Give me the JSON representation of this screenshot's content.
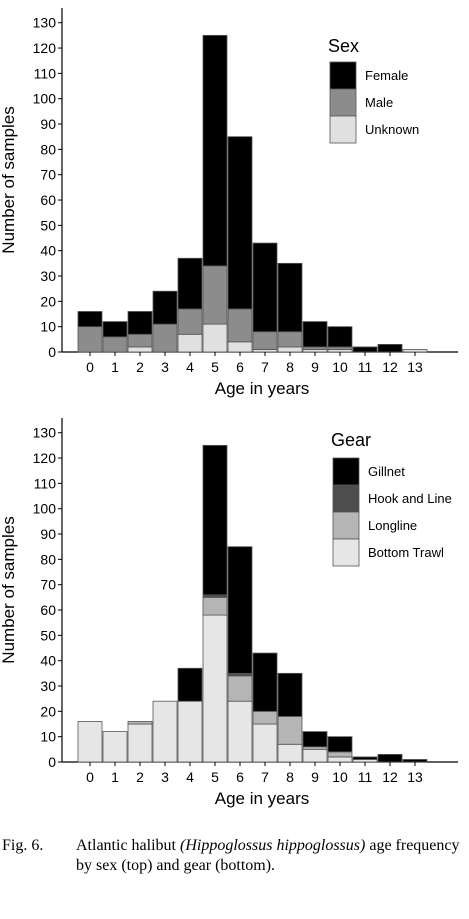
{
  "chart_data": [
    {
      "type": "bar",
      "stacked": true,
      "categories": [
        "0",
        "1",
        "2",
        "3",
        "4",
        "5",
        "6",
        "7",
        "8",
        "9",
        "10",
        "11",
        "12",
        "13"
      ],
      "series": [
        {
          "name": "Unknown",
          "color": "#e0e0e0",
          "values": [
            0,
            0,
            2,
            0,
            7,
            11,
            4,
            1,
            2,
            1,
            1,
            0,
            0,
            1
          ]
        },
        {
          "name": "Male",
          "color": "#8c8c8c",
          "values": [
            10,
            6,
            5,
            11,
            10,
            23,
            13,
            7,
            6,
            1,
            1,
            0,
            0,
            0
          ]
        },
        {
          "name": "Female",
          "color": "#000000",
          "values": [
            6,
            6,
            9,
            13,
            20,
            91,
            68,
            35,
            27,
            10,
            8,
            2,
            3,
            0
          ]
        }
      ],
      "legend_title": "Sex",
      "legend_order": [
        "Female",
        "Male",
        "Unknown"
      ],
      "legend_position": "top-right",
      "xlabel": "Age in years",
      "ylabel": "Number of samples",
      "ylim": [
        0,
        135
      ],
      "yticks": [
        0,
        10,
        20,
        30,
        40,
        50,
        60,
        70,
        80,
        90,
        100,
        110,
        120,
        130
      ],
      "grid": false
    },
    {
      "type": "bar",
      "stacked": true,
      "categories": [
        "0",
        "1",
        "2",
        "3",
        "4",
        "5",
        "6",
        "7",
        "8",
        "9",
        "10",
        "11",
        "12",
        "13"
      ],
      "series": [
        {
          "name": "Bottom Trawl",
          "color": "#e6e6e6",
          "values": [
            16,
            12,
            15,
            24,
            24,
            58,
            24,
            15,
            7,
            5,
            2,
            1,
            0,
            0
          ]
        },
        {
          "name": "Longline",
          "color": "#b5b5b5",
          "values": [
            0,
            0,
            1,
            0,
            0,
            7,
            10,
            5,
            11,
            1,
            2,
            0,
            0,
            0
          ]
        },
        {
          "name": "Hook and Line",
          "color": "#4d4d4d",
          "values": [
            0,
            0,
            0,
            0,
            0,
            1,
            1,
            0,
            0,
            0,
            0,
            0,
            0,
            0
          ]
        },
        {
          "name": "Gillnet",
          "color": "#000000",
          "values": [
            0,
            0,
            0,
            0,
            13,
            59,
            50,
            23,
            17,
            6,
            6,
            1,
            3,
            1
          ]
        }
      ],
      "legend_title": "Gear",
      "legend_order": [
        "Gillnet",
        "Hook and Line",
        "Longline",
        "Bottom Trawl"
      ],
      "legend_position": "top-right",
      "xlabel": "Age in years",
      "ylabel": "Number of samples",
      "ylim": [
        0,
        135
      ],
      "yticks": [
        0,
        10,
        20,
        30,
        40,
        50,
        60,
        70,
        80,
        90,
        100,
        110,
        120,
        130
      ],
      "grid": false
    }
  ],
  "caption": {
    "label": "Fig. 6.",
    "text_prefix": "Atlantic halibut ",
    "species": "(Hippoglossus hippoglossus)",
    "text_suffix": " age frequency by sex (top) and gear (bottom)."
  }
}
